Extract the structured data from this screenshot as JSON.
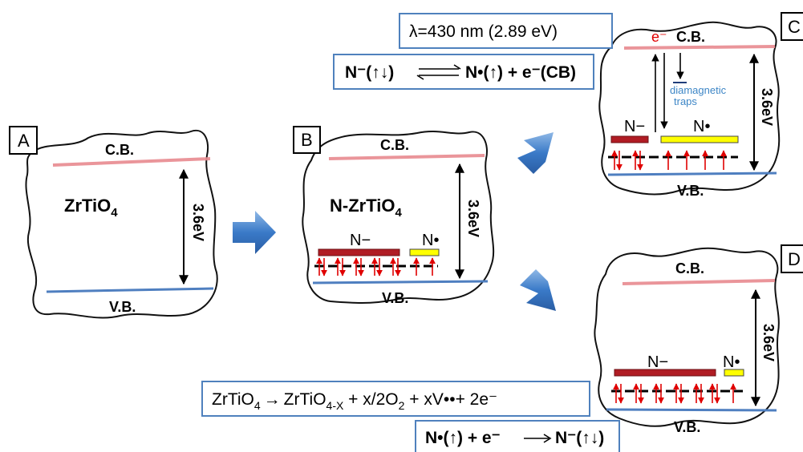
{
  "panels": {
    "A": {
      "letter": "A",
      "cb": "C.B.",
      "vb": "V.B.",
      "material": "ZrTiO",
      "material_sub": "4",
      "gap": "3.6eV"
    },
    "B": {
      "letter": "B",
      "cb": "C.B.",
      "vb": "V.B.",
      "material": "N-ZrTiO",
      "material_sub": "4",
      "gap": "3.6eV",
      "n_minus": "N−",
      "n_dot": "N•"
    },
    "C": {
      "letter": "C",
      "cb": "C.B.",
      "vb": "V.B.",
      "gap": "3.6eV",
      "n_minus": "N−",
      "n_dot": "N•",
      "electron": "e⁻",
      "traps_line1": "diamagnetic",
      "traps_line2": "traps"
    },
    "D": {
      "letter": "D",
      "cb": "C.B.",
      "vb": "V.B.",
      "gap": "3.6eV",
      "n_minus": "N−",
      "n_dot": "N•"
    }
  },
  "equations": {
    "wavelength": "λ=430 nm (2.89 eV)",
    "reaction_top": {
      "left": "N⁻(↑↓)",
      "right": "N•(↑) + e⁻(CB)"
    },
    "reaction_reduction": {
      "a": "ZrTiO",
      "a_sub": "4",
      "arrow": "→",
      "b": "ZrTiO",
      "b_sub": "4-X",
      "c": " + x/2O",
      "c_sub": "2",
      "d": " + xV••+ 2e⁻"
    },
    "reaction_bottom": {
      "left": "N•(↑) + e⁻",
      "right": "N⁻(↑↓)"
    }
  },
  "colors": {
    "cb_band": "#e88a90",
    "vb_band": "#4f7fc0",
    "n_minus_bar": "#b01c24",
    "n_dot_bar": "#ffff00",
    "spin_arrow": "#e00000",
    "big_arrow": "#3a7ac8",
    "eq_box_border": "#4f81bd",
    "traps_text": "#3d86c6"
  }
}
